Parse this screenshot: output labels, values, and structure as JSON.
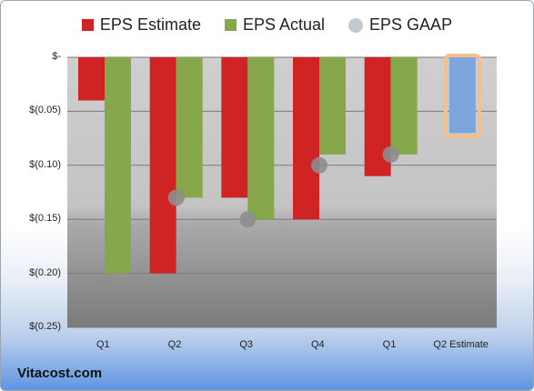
{
  "chart_data": {
    "type": "bar",
    "categories": [
      "Q1",
      "Q2",
      "Q3",
      "Q4",
      "Q1",
      "Q2 Estimate"
    ],
    "series": [
      {
        "name": "EPS Estimate",
        "color": "#d02424",
        "values": [
          -0.04,
          -0.2,
          -0.13,
          -0.15,
          -0.11,
          null
        ]
      },
      {
        "name": "EPS Actual",
        "color": "#86a84a",
        "values": [
          -0.2,
          -0.13,
          -0.15,
          -0.09,
          -0.09,
          null
        ]
      },
      {
        "name": "EPS GAAP",
        "color": "#a3abb7",
        "marker": "circle",
        "values": [
          -0.21,
          -0.13,
          -0.15,
          -0.1,
          -0.09,
          null
        ]
      }
    ],
    "estimate_bar": {
      "category": "Q2 Estimate",
      "value": -0.07,
      "color": "#7ea6dd",
      "outline_color": "#f3c08a"
    },
    "ylim": [
      -0.25,
      0
    ],
    "yticks": [
      0,
      -0.05,
      -0.1,
      -0.15,
      -0.2,
      -0.25
    ],
    "ytick_labels": [
      "$-",
      "$(0.05)",
      "$(0.10)",
      "$(0.15)",
      "$(0.20)",
      "$(0.25)"
    ],
    "grid": true,
    "legend_position": "top"
  },
  "brand": "Vitacost.com"
}
